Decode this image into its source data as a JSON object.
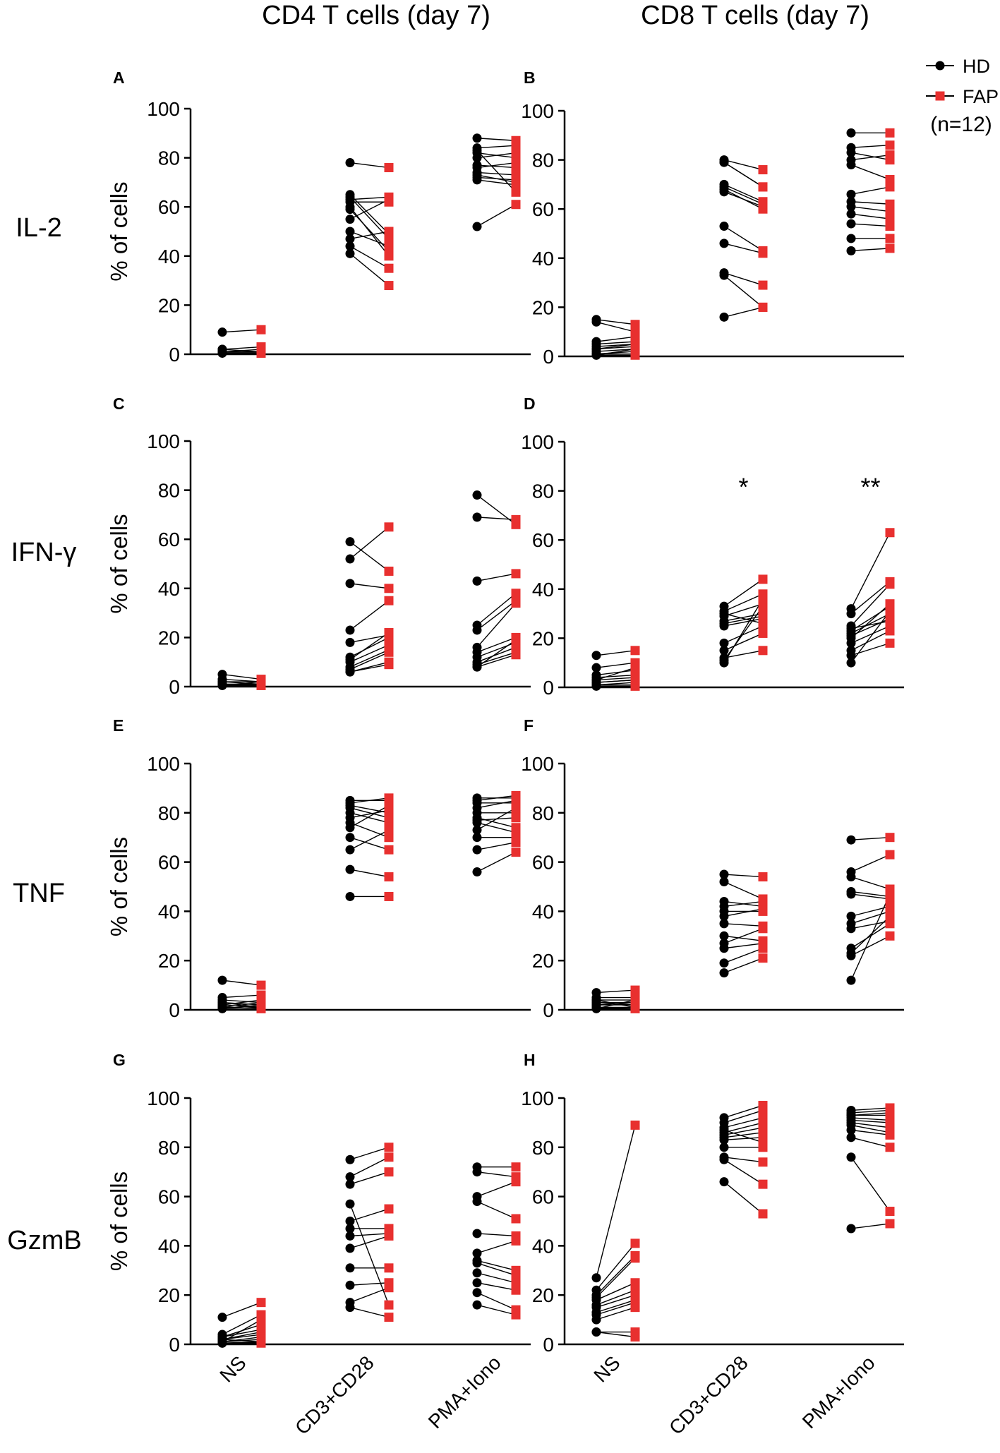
{
  "figure": {
    "col_titles": [
      "CD4 T cells (day 7)",
      "CD8 T cells (day 7)"
    ],
    "row_labels": [
      "IL-2",
      "IFN-γ",
      "TNF",
      "GzmB"
    ],
    "legend": {
      "hd": "HD",
      "fap": "FAP",
      "n": "(n=12)"
    },
    "colors": {
      "hd": "#000000",
      "fap": "#e8302f"
    }
  },
  "chart_data": [
    {
      "panel": "A",
      "type": "scatter",
      "subtype": "paired",
      "title": "CD4 T cells (day 7)",
      "row": "IL-2",
      "ylabel": "% of cells",
      "ylim": [
        0,
        100
      ],
      "yticks": [
        0,
        20,
        40,
        60,
        80,
        100
      ],
      "categories": [
        "NS",
        "CD3+CD28",
        "PMA+Iono"
      ],
      "show_xticks": false,
      "stars": [
        "",
        "",
        ""
      ],
      "series": [
        {
          "name": "HD",
          "values": [
            [
              9,
              2,
              1,
              0.5,
              0.5,
              1,
              0.5,
              2,
              1,
              0.5,
              1,
              0.5
            ],
            [
              78,
              65,
              63,
              62,
              60,
              55,
              50,
              47,
              44,
              41,
              64,
              59
            ],
            [
              88,
              84,
              82,
              80,
              77,
              76,
              74,
              73,
              72,
              71,
              52,
              83
            ]
          ]
        },
        {
          "name": "FAP",
          "values": [
            [
              10,
              3,
              1,
              0.5,
              0.5,
              2,
              0.5,
              1,
              1,
              0.5,
              1,
              0.5
            ],
            [
              76,
              49,
              64,
              62,
              40,
              63,
              44,
              50,
              35,
              28,
              47,
              42
            ],
            [
              87,
              85,
              80,
              82,
              76,
              78,
              73,
              70,
              71,
              69,
              61,
              66
            ]
          ]
        }
      ]
    },
    {
      "panel": "B",
      "type": "scatter",
      "subtype": "paired",
      "title": "CD8 T cells (day 7)",
      "row": "IL-2",
      "ylabel": "",
      "ylim": [
        0,
        100
      ],
      "yticks": [
        0,
        20,
        40,
        60,
        80,
        100
      ],
      "categories": [
        "NS",
        "CD3+CD28",
        "PMA+Iono"
      ],
      "show_xticks": false,
      "stars": [
        "",
        "",
        ""
      ],
      "series": [
        {
          "name": "HD",
          "values": [
            [
              15,
              14,
              6,
              5,
              4,
              3,
              2,
              1,
              1,
              0.5,
              0.5,
              3
            ],
            [
              80,
              79,
              70,
              68,
              67,
              53,
              46,
              34,
              33,
              16,
              69,
              79
            ],
            [
              91,
              85,
              83,
              80,
              78,
              66,
              63,
              61,
              58,
              54,
              48,
              43
            ]
          ]
        },
        {
          "name": "FAP",
          "values": [
            [
              13,
              10,
              8,
              6,
              5,
              4,
              3,
              2,
              1,
              0.5,
              3,
              5
            ],
            [
              76,
              69,
              63,
              60,
              61,
              43,
              42,
              29,
              20,
              20,
              62,
              69
            ],
            [
              91,
              86,
              80,
              82,
              72,
              69,
              62,
              59,
              56,
              53,
              48,
              44
            ]
          ]
        }
      ]
    },
    {
      "panel": "C",
      "type": "scatter",
      "subtype": "paired",
      "title": "",
      "row": "IFN-γ",
      "ylabel": "% of cells",
      "ylim": [
        0,
        100
      ],
      "yticks": [
        0,
        20,
        40,
        60,
        80,
        100
      ],
      "categories": [
        "NS",
        "CD3+CD28",
        "PMA+Iono"
      ],
      "show_xticks": false,
      "stars": [
        "",
        "",
        ""
      ],
      "series": [
        {
          "name": "HD",
          "values": [
            [
              5,
              3,
              2,
              1,
              0.5,
              0.5,
              1,
              2,
              0.5,
              1,
              0.5,
              0.5
            ],
            [
              59,
              52,
              42,
              23,
              18,
              12,
              10,
              8,
              7,
              6,
              6,
              11
            ],
            [
              78,
              69,
              43,
              25,
              16,
              14,
              12,
              10,
              9,
              8,
              8,
              23
            ]
          ]
        },
        {
          "name": "FAP",
          "values": [
            [
              3,
              2,
              1,
              1,
              0.5,
              0.5,
              1,
              2,
              2,
              1,
              0.5,
              1
            ],
            [
              47,
              65,
              40,
              35,
              21,
              20,
              17,
              15,
              14,
              10,
              9,
              22
            ],
            [
              66,
              68,
              46,
              38,
              34,
              20,
              18,
              16,
              14,
              13,
              19,
              35
            ]
          ]
        }
      ]
    },
    {
      "panel": "D",
      "type": "scatter",
      "subtype": "paired",
      "title": "",
      "row": "IFN-γ",
      "ylabel": "",
      "ylim": [
        0,
        100
      ],
      "yticks": [
        0,
        20,
        40,
        60,
        80,
        100
      ],
      "categories": [
        "NS",
        "CD3+CD28",
        "PMA+Iono"
      ],
      "show_xticks": false,
      "stars": [
        "",
        "*",
        "**"
      ],
      "series": [
        {
          "name": "HD",
          "values": [
            [
              13,
              8,
              5,
              4,
              3,
              2,
              1,
              1,
              0.5,
              0.5,
              3,
              2
            ],
            [
              33,
              31,
              29,
              27,
              25,
              18,
              15,
              12,
              11,
              10,
              26,
              30
            ],
            [
              32,
              30,
              25,
              23,
              22,
              21,
              18,
              15,
              13,
              10,
              20,
              24
            ]
          ]
        },
        {
          "name": "FAP",
          "values": [
            [
              15,
              10,
              7,
              5,
              4,
              3,
              2,
              1,
              0.5,
              0.5,
              8,
              3
            ],
            [
              44,
              38,
              34,
              30,
              28,
              25,
              22,
              15,
              33,
              36,
              29,
              26
            ],
            [
              63,
              43,
              42,
              33,
              30,
              28,
              25,
              23,
              18,
              31,
              34,
              27
            ]
          ]
        }
      ]
    },
    {
      "panel": "E",
      "type": "scatter",
      "subtype": "paired",
      "title": "",
      "row": "TNF",
      "ylabel": "% of cells",
      "ylim": [
        0,
        100
      ],
      "yticks": [
        0,
        20,
        40,
        60,
        80,
        100
      ],
      "categories": [
        "NS",
        "CD3+CD28",
        "PMA+Iono"
      ],
      "show_xticks": false,
      "stars": [
        "",
        "",
        ""
      ],
      "series": [
        {
          "name": "HD",
          "values": [
            [
              12,
              5,
              4,
              3,
              2,
              1,
              1,
              0.5,
              0.5,
              1,
              2,
              3
            ],
            [
              85,
              84,
              83,
              80,
              78,
              76,
              74,
              70,
              65,
              57,
              46,
              82
            ],
            [
              86,
              85,
              82,
              80,
              78,
              77,
              76,
              73,
              70,
              65,
              56,
              84
            ]
          ]
        },
        {
          "name": "FAP",
          "values": [
            [
              10,
              6,
              3,
              2,
              1,
              0.5,
              0.5,
              2,
              1,
              3,
              4,
              1
            ],
            [
              85,
              86,
              80,
              76,
              81,
              70,
              83,
              65,
              73,
              54,
              46,
              78
            ],
            [
              86,
              87,
              85,
              80,
              74,
              78,
              72,
              82,
              70,
              68,
              64,
              84
            ]
          ]
        }
      ]
    },
    {
      "panel": "F",
      "type": "scatter",
      "subtype": "paired",
      "title": "",
      "row": "TNF",
      "ylabel": "",
      "ylim": [
        0,
        100
      ],
      "yticks": [
        0,
        20,
        40,
        60,
        80,
        100
      ],
      "categories": [
        "NS",
        "CD3+CD28",
        "PMA+Iono"
      ],
      "show_xticks": false,
      "stars": [
        "",
        "",
        ""
      ],
      "series": [
        {
          "name": "HD",
          "values": [
            [
              7,
              5,
              4,
              3,
              2,
              1,
              1,
              0.5,
              0.5,
              2,
              3,
              4
            ],
            [
              55,
              52,
              44,
              40,
              38,
              35,
              30,
              27,
              25,
              19,
              15,
              42
            ],
            [
              69,
              56,
              54,
              48,
              47,
              38,
              35,
              33,
              25,
              23,
              22,
              12
            ]
          ]
        },
        {
          "name": "FAP",
          "values": [
            [
              8,
              5,
              4,
              3,
              2,
              1,
              0.5,
              0.5,
              4,
              3,
              2,
              1
            ],
            [
              54,
              45,
              42,
              40,
              41,
              34,
              28,
              33,
              27,
              25,
              21,
              44
            ],
            [
              70,
              63,
              49,
              46,
              45,
              42,
              40,
              36,
              35,
              38,
              30,
              47
            ]
          ]
        }
      ]
    },
    {
      "panel": "G",
      "type": "scatter",
      "subtype": "paired",
      "title": "",
      "row": "GzmB",
      "ylabel": "% of cells",
      "ylim": [
        0,
        100
      ],
      "yticks": [
        0,
        20,
        40,
        60,
        80,
        100
      ],
      "categories": [
        "NS",
        "CD3+CD28",
        "PMA+Iono"
      ],
      "show_xticks": true,
      "stars": [
        "",
        "",
        ""
      ],
      "series": [
        {
          "name": "HD",
          "values": [
            [
              11,
              4,
              3,
              3,
              2,
              2,
              1,
              1,
              0.5,
              0.5,
              2,
              1
            ],
            [
              75,
              68,
              65,
              50,
              47,
              44,
              39,
              31,
              24,
              17,
              15,
              57
            ],
            [
              72,
              70,
              60,
              58,
              45,
              37,
              34,
              33,
              29,
              25,
              21,
              16
            ]
          ]
        },
        {
          "name": "FAP",
          "values": [
            [
              17,
              12,
              8,
              6,
              5,
              4,
              3,
              2,
              1,
              0.5,
              1,
              10
            ],
            [
              80,
              76,
              70,
              55,
              47,
              45,
              44,
              31,
              25,
              23,
              11,
              16
            ],
            [
              72,
              68,
              66,
              51,
              44,
              42,
              30,
              28,
              25,
              22,
              14,
              12
            ]
          ]
        }
      ]
    },
    {
      "panel": "H",
      "type": "scatter",
      "subtype": "paired",
      "title": "",
      "row": "GzmB",
      "ylabel": "",
      "ylim": [
        0,
        100
      ],
      "yticks": [
        0,
        20,
        40,
        60,
        80,
        100
      ],
      "categories": [
        "NS",
        "CD3+CD28",
        "PMA+Iono"
      ],
      "show_xticks": true,
      "stars": [
        "",
        "",
        ""
      ],
      "series": [
        {
          "name": "HD",
          "values": [
            [
              27,
              22,
              20,
              19,
              18,
              16,
              15,
              13,
              12,
              10,
              5,
              5
            ],
            [
              92,
              90,
              88,
              86,
              85,
              84,
              83,
              80,
              76,
              75,
              66,
              87
            ],
            [
              95,
              94,
              93,
              92,
              91,
              90,
              89,
              87,
              84,
              76,
              47,
              93
            ]
          ]
        },
        {
          "name": "FAP",
          "values": [
            [
              89,
              41,
              36,
              35,
              25,
              22,
              20,
              18,
              17,
              15,
              5,
              3
            ],
            [
              97,
              95,
              92,
              90,
              88,
              86,
              84,
              80,
              74,
              65,
              53,
              82
            ],
            [
              96,
              95,
              93,
              91,
              90,
              88,
              86,
              85,
              80,
              54,
              49,
              94
            ]
          ]
        }
      ]
    }
  ]
}
